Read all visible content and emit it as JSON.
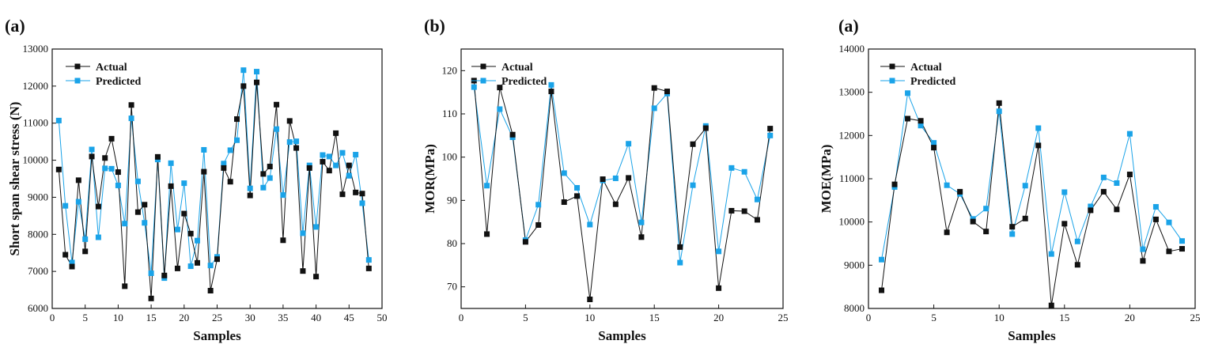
{
  "colors": {
    "actual": "#111111",
    "predicted": "#1aa3e8"
  },
  "chart_data": [
    {
      "type": "line",
      "panel_label": "(a)",
      "xlabel": "Samples",
      "ylabel": "Short span shear stress (N)",
      "xlim": [
        0,
        50
      ],
      "ylim": [
        6000,
        13000
      ],
      "xticks": [
        0,
        5,
        10,
        15,
        20,
        25,
        30,
        35,
        40,
        45,
        50
      ],
      "yticks": [
        6000,
        7000,
        8000,
        9000,
        10000,
        11000,
        12000,
        13000
      ],
      "legend_position": "top-left",
      "x": [
        1,
        2,
        3,
        4,
        5,
        6,
        7,
        8,
        9,
        10,
        11,
        12,
        13,
        14,
        15,
        16,
        17,
        18,
        19,
        20,
        21,
        22,
        23,
        24,
        25,
        26,
        27,
        28,
        29,
        30,
        31,
        32,
        33,
        34,
        35,
        36,
        37,
        38,
        39,
        40,
        41,
        42,
        43,
        44,
        45,
        46,
        47,
        48
      ],
      "series": [
        {
          "name": "Actual",
          "values": [
            9750,
            7450,
            7130,
            9460,
            7540,
            10100,
            8750,
            10060,
            10580,
            9680,
            6600,
            11490,
            8600,
            8800,
            6270,
            10090,
            6890,
            9300,
            7080,
            8560,
            8020,
            7230,
            9690,
            6480,
            7330,
            9790,
            9420,
            11110,
            12000,
            9050,
            12100,
            9630,
            9830,
            11500,
            7840,
            11060,
            10330,
            7010,
            9790,
            6860,
            9960,
            9720,
            10730,
            9080,
            9860,
            9130,
            9100,
            7080
          ]
        },
        {
          "name": "Predicted",
          "values": [
            11070,
            8770,
            7240,
            8880,
            7870,
            10290,
            7920,
            9780,
            9770,
            9320,
            8290,
            11130,
            9430,
            8310,
            6950,
            10020,
            6820,
            9920,
            8130,
            9380,
            7140,
            7830,
            10280,
            7160,
            7390,
            9910,
            10270,
            10540,
            12430,
            9240,
            12390,
            9260,
            9520,
            10840,
            9060,
            10490,
            10510,
            8030,
            9860,
            8200,
            10140,
            10100,
            9860,
            10200,
            9580,
            10150,
            8840,
            7310
          ]
        }
      ]
    },
    {
      "type": "line",
      "panel_label": "(b)",
      "xlabel": "Samples",
      "ylabel": "MOR(MPa)",
      "xlim": [
        0,
        25
      ],
      "ylim": [
        65,
        125
      ],
      "xticks": [
        0,
        5,
        10,
        15,
        20,
        25
      ],
      "yticks": [
        70,
        80,
        90,
        100,
        110,
        120
      ],
      "legend_position": "top-left",
      "x": [
        1,
        2,
        3,
        4,
        5,
        6,
        7,
        8,
        9,
        10,
        11,
        12,
        13,
        14,
        15,
        16,
        17,
        18,
        19,
        20,
        21,
        22,
        23,
        24
      ],
      "series": [
        {
          "name": "Actual",
          "values": [
            117.7,
            82.2,
            116.1,
            105.2,
            80.4,
            84.3,
            115.2,
            89.6,
            91.0,
            67.1,
            94.9,
            89.1,
            95.2,
            81.5,
            116.0,
            115.2,
            79.2,
            103.0,
            106.7,
            69.7,
            87.6,
            87.5,
            85.5,
            106.6
          ]
        },
        {
          "name": "Predicted",
          "values": [
            116.2,
            93.4,
            111.1,
            104.6,
            80.8,
            89.0,
            116.7,
            96.3,
            92.9,
            84.4,
            94.6,
            95.1,
            103.1,
            84.9,
            111.3,
            114.7,
            75.6,
            93.5,
            107.2,
            78.2,
            97.5,
            96.6,
            90.2,
            105.0
          ]
        }
      ]
    },
    {
      "type": "line",
      "panel_label": "(a)",
      "xlabel": "Samples",
      "ylabel": "MOE(MPa)",
      "xlim": [
        0,
        25
      ],
      "ylim": [
        8000,
        14000
      ],
      "xticks": [
        0,
        5,
        10,
        15,
        20,
        25
      ],
      "yticks": [
        8000,
        9000,
        10000,
        11000,
        12000,
        13000,
        14000
      ],
      "legend_position": "top-left",
      "x": [
        1,
        2,
        3,
        4,
        5,
        6,
        7,
        8,
        9,
        10,
        11,
        12,
        13,
        14,
        15,
        16,
        17,
        18,
        19,
        20,
        21,
        22,
        23,
        24
      ],
      "series": [
        {
          "name": "Actual",
          "values": [
            8420,
            10870,
            12390,
            12340,
            11720,
            9760,
            10700,
            10010,
            9780,
            12750,
            9890,
            10080,
            11770,
            8070,
            9960,
            9010,
            10270,
            10700,
            10290,
            11100,
            9100,
            10060,
            9320,
            9380
          ]
        },
        {
          "name": "Predicted",
          "values": [
            9130,
            10810,
            12980,
            12230,
            11830,
            10850,
            10650,
            10070,
            10310,
            12560,
            9720,
            10840,
            12170,
            9260,
            10690,
            9550,
            10360,
            11030,
            10900,
            12040,
            9370,
            10350,
            9990,
            9560
          ]
        }
      ]
    }
  ]
}
